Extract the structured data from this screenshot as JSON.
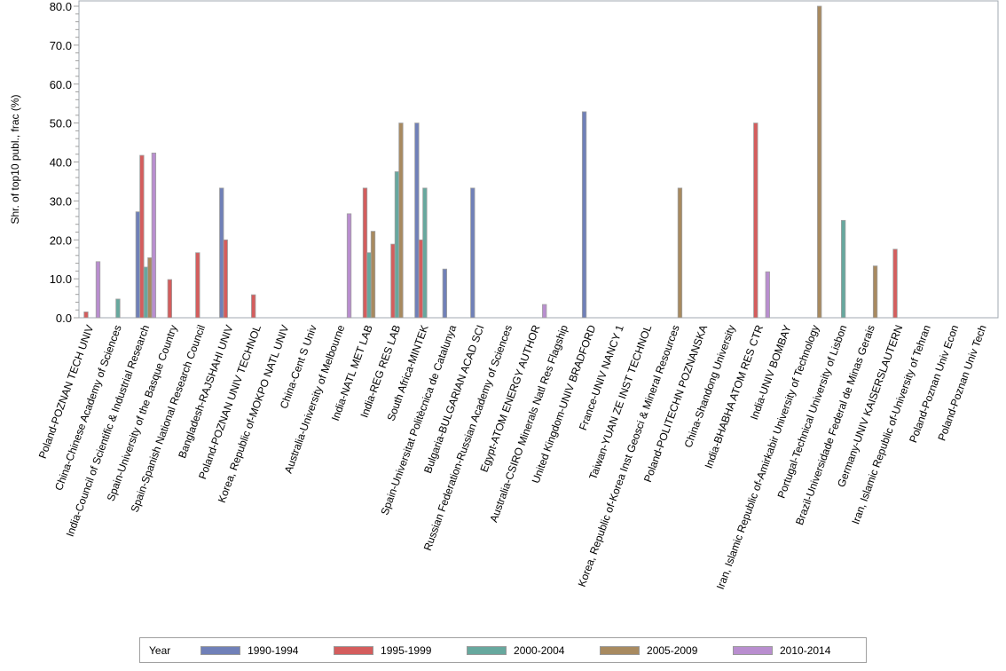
{
  "chart_data": {
    "type": "bar",
    "title": "",
    "xlabel": "",
    "ylabel": "Shr. of top10 publ., frac (%)",
    "ylim": [
      0,
      80
    ],
    "yticks": [
      "0.0",
      "10.0",
      "20.0",
      "30.0",
      "40.0",
      "50.0",
      "60.0",
      "70.0",
      "80.0"
    ],
    "grid": false,
    "legend_title": "Year",
    "legend_position": "bottom",
    "categories": [
      "Poland-POZNAN TECH UNIV",
      "China-Chinese Academy of Sciences",
      "India-Council of Scientific & Industrial Research",
      "Spain-University of the Basque Country",
      "Spain-Spanish National Research Council",
      "Bangladesh-RAJSHAHI UNIV",
      "Poland-POZNAN UNIV TECHNOL",
      "Korea, Republic of-MOKPO NATL UNIV",
      "China-Cent S Univ",
      "Australia-University of Melbourne",
      "India-NATL MET LAB",
      "India-REG RES LAB",
      "South Africa-MINTEK",
      "Spain-Universitat Politècnica de Catalunya",
      "Bulgaria-BULGARIAN ACAD SCI",
      "Russian Federation-Russian Academy of Sciences",
      "Egypt-ATOM ENERGY AUTHOR",
      "Australia-CSIRO Minerals Natl Res Flagship",
      "United Kingdom-UNIV BRADFORD",
      "France-UNIV NANCY 1",
      "Taiwan-YUAN ZE INST TECHNOL",
      "Korea, Republic of-Korea Inst Geosci & Mineral Resources",
      "Poland-POLITECHN POZNANSKA",
      "China-Shandong University",
      "India-BHABHA ATOM RES CTR",
      "India-UNIV BOMBAY",
      "Iran, Islamic Republic of-Amirkabir University of Technology",
      "Portugal-Technical University of Lisbon",
      "Brazil-Universidade Federal de Minas Gerais",
      "Germany-UNIV KAISERSLAUTERN",
      "Iran, Islamic Republic of-University of Tehran",
      "Poland-Poznan Univ Econ",
      "Poland-Poznan Univ Tech"
    ],
    "series": [
      {
        "name": "1990-1994",
        "color": "#7080b8",
        "values": [
          0,
          0,
          27.2,
          0,
          0,
          33.3,
          0,
          0,
          0,
          0,
          0,
          0,
          50,
          12.5,
          33.3,
          0,
          0,
          0,
          52.9,
          0,
          0,
          0,
          0,
          0,
          0,
          0,
          0,
          0,
          0,
          0,
          0,
          0,
          0
        ]
      },
      {
        "name": "1995-1999",
        "color": "#d45d5d",
        "values": [
          1.5,
          0,
          41.7,
          9.8,
          16.7,
          20,
          5.9,
          0,
          0,
          0,
          33.3,
          18.9,
          20,
          0,
          0,
          0,
          0,
          0,
          0,
          0,
          0,
          0,
          0,
          0,
          50,
          0,
          0,
          0,
          0,
          17.6,
          0,
          0,
          0
        ]
      },
      {
        "name": "2000-2004",
        "color": "#67a89e",
        "values": [
          0,
          4.8,
          13.0,
          0,
          0,
          0,
          0,
          0,
          0,
          0,
          16.7,
          37.5,
          33.3,
          0,
          0,
          0,
          0,
          0,
          0,
          0,
          0,
          0,
          0,
          0,
          0,
          0,
          0,
          25,
          0,
          0,
          0,
          0,
          0
        ]
      },
      {
        "name": "2005-2009",
        "color": "#a88a60",
        "values": [
          0,
          0,
          15.4,
          0,
          0,
          0,
          0,
          0,
          0,
          0,
          22.2,
          50,
          0,
          0,
          0,
          0,
          0,
          0,
          0,
          0,
          0,
          33.3,
          0,
          0,
          0,
          0,
          80,
          0,
          13.3,
          0,
          0,
          0,
          0
        ]
      },
      {
        "name": "2010-2014",
        "color": "#b98ecf",
        "values": [
          14.4,
          0,
          42.3,
          0,
          0,
          0,
          0,
          0,
          0,
          26.7,
          0,
          0,
          0,
          0,
          0,
          0,
          3.4,
          0,
          0,
          0,
          0,
          0,
          0,
          0,
          11.8,
          0,
          0,
          0,
          0,
          0,
          0,
          0,
          0
        ]
      }
    ]
  }
}
